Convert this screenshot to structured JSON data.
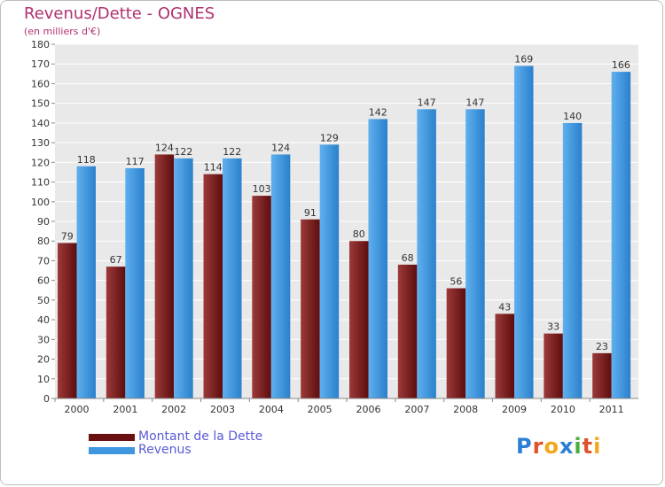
{
  "title": "Revenus/Dette - OGNES",
  "subtitle": "(en milliers d'€)",
  "logo": {
    "text": "Proxiti",
    "letters": [
      {
        "ch": "P",
        "color": "#2a7fd4"
      },
      {
        "ch": "r",
        "color": "#e0522a"
      },
      {
        "ch": "o",
        "color": "#f2a81d"
      },
      {
        "ch": "x",
        "color": "#2a7fd4"
      },
      {
        "ch": "i",
        "color": "#4cae3a"
      },
      {
        "ch": "t",
        "color": "#e0522a"
      },
      {
        "ch": "i",
        "color": "#f2a81d"
      }
    ]
  },
  "chart_data": {
    "type": "bar",
    "title": "Revenus/Dette - OGNES",
    "subtitle": "(en milliers d'€)",
    "categories": [
      "2000",
      "2001",
      "2002",
      "2003",
      "2004",
      "2005",
      "2006",
      "2007",
      "2008",
      "2009",
      "2010",
      "2011"
    ],
    "series": [
      {
        "name": "Montant de la Dette",
        "color": "#7a1a1a",
        "values": [
          79,
          67,
          124,
          114,
          103,
          91,
          80,
          68,
          56,
          43,
          33,
          23
        ]
      },
      {
        "name": "Revenus",
        "color": "#3f97e0",
        "values": [
          118,
          117,
          122,
          122,
          124,
          129,
          142,
          147,
          147,
          169,
          140,
          166
        ]
      }
    ],
    "ylim": [
      0,
      180
    ],
    "ytick_step": 10,
    "grid": true,
    "legend_position": "bottom-left"
  }
}
